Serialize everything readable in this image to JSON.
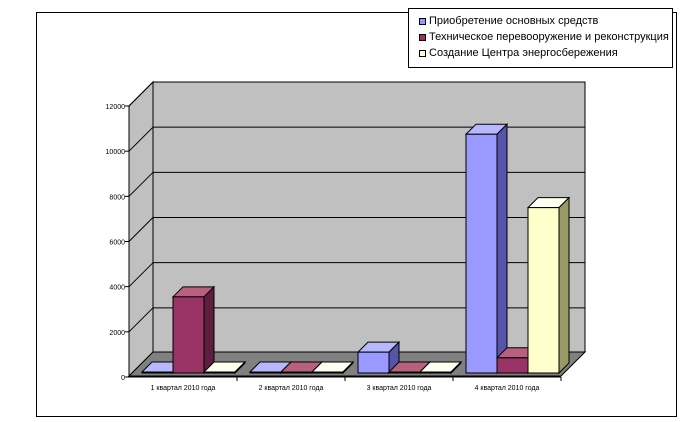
{
  "chart_data": {
    "type": "bar",
    "categories": [
      "1 квартал 2010 года",
      "2 квартал 2010 года",
      "3 квартал 2010 года",
      "4 квартал 2010 года"
    ],
    "series": [
      {
        "name": "Приобретение основных средств",
        "values": [
          150,
          100,
          1100,
          10750
        ],
        "color": "#9999ff",
        "side": "#5555aa",
        "top": "#b8b8ff"
      },
      {
        "name": "Техническое перевооружение и реконструкция",
        "values": [
          3550,
          0,
          0,
          850
        ],
        "color": "#993366",
        "side": "#5e1f3e",
        "top": "#b8607e"
      },
      {
        "name": "Создание Центра энергосбережения",
        "values": [
          0,
          0,
          0,
          7500
        ],
        "color": "#ffffcc",
        "side": "#999966",
        "top": "#fffff0"
      }
    ],
    "y_ticks": [
      "0",
      "2000",
      "4000",
      "6000",
      "8000",
      "10000",
      "12000"
    ],
    "ylim": [
      0,
      12000
    ],
    "grid": true,
    "legend_position": "top-right",
    "colors": {
      "wall": "#c0c0c0",
      "floor": "#808080",
      "grid": "#000000"
    }
  }
}
